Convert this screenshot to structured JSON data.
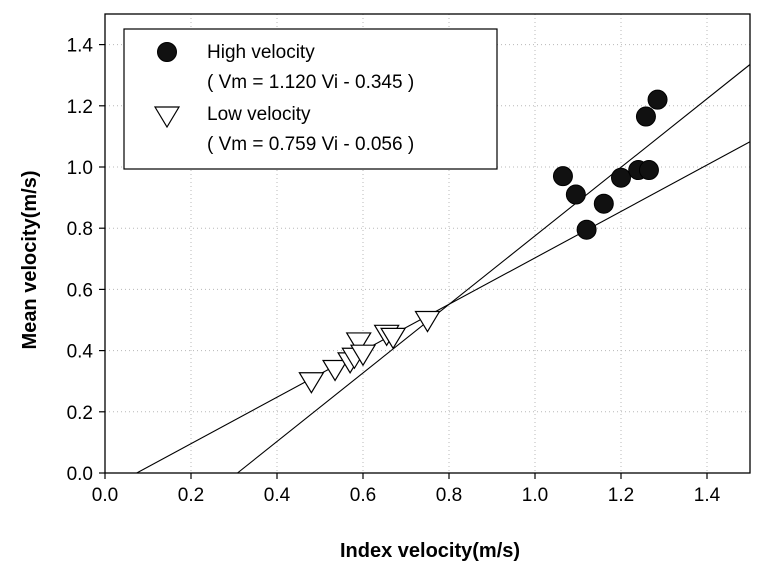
{
  "chart_data": {
    "type": "scatter",
    "xlabel": "Index velocity(m/s)",
    "ylabel": "Mean velocity(m/s)",
    "xlim": [
      0.0,
      1.5
    ],
    "ylim": [
      0.0,
      1.5
    ],
    "xticks": [
      "0.0",
      "0.2",
      "0.4",
      "0.6",
      "0.8",
      "1.0",
      "1.2",
      "1.4"
    ],
    "yticks": [
      "0.0",
      "0.2",
      "0.4",
      "0.6",
      "0.8",
      "1.0",
      "1.2",
      "1.4"
    ],
    "grid": true,
    "legend_position": "top-left",
    "series": [
      {
        "name": "High velocity",
        "equation": "( Vm = 1.120 Vi - 0.345 )",
        "marker": "filled-circle",
        "color": "#111111",
        "points": [
          [
            1.065,
            0.97
          ],
          [
            1.095,
            0.91
          ],
          [
            1.12,
            0.795
          ],
          [
            1.16,
            0.88
          ],
          [
            1.2,
            0.965
          ],
          [
            1.24,
            0.99
          ],
          [
            1.265,
            0.99
          ],
          [
            1.258,
            1.165
          ],
          [
            1.285,
            1.22
          ]
        ],
        "fit": {
          "slope": 1.12,
          "intercept": -0.345
        }
      },
      {
        "name": "Low velocity",
        "equation": "( Vm = 0.759 Vi - 0.056 )",
        "marker": "open-triangle-down",
        "color": "#000000",
        "points": [
          [
            0.48,
            0.295
          ],
          [
            0.535,
            0.335
          ],
          [
            0.57,
            0.36
          ],
          [
            0.58,
            0.375
          ],
          [
            0.59,
            0.425
          ],
          [
            0.6,
            0.385
          ],
          [
            0.655,
            0.45
          ],
          [
            0.67,
            0.44
          ],
          [
            0.75,
            0.495
          ]
        ],
        "fit": {
          "slope": 0.759,
          "intercept": -0.056
        }
      }
    ]
  }
}
